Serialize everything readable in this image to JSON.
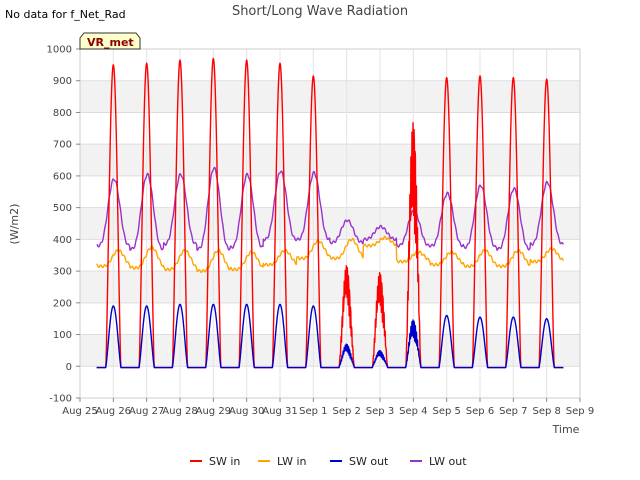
{
  "chart_data": {
    "type": "line",
    "title": "Short/Long Wave Radiation",
    "no_data_note": "No data for f_Net_Rad",
    "site_badge": "VR_met",
    "xlabel": "Time",
    "ylabel": "(W/m2)",
    "ylim": [
      -100,
      1000
    ],
    "yticks": [
      -100,
      0,
      100,
      200,
      300,
      400,
      500,
      600,
      700,
      800,
      900,
      1000
    ],
    "xlim": [
      0,
      15
    ],
    "xtick_labels": [
      "Aug 25",
      "Aug 26",
      "Aug 27",
      "Aug 28",
      "Aug 29",
      "Aug 30",
      "Aug 31",
      "Sep 1",
      "Sep 2",
      "Sep 3",
      "Sep 4",
      "Sep 5",
      "Sep 6",
      "Sep 7",
      "Sep 8",
      "Sep 9"
    ],
    "grid": true,
    "legend_position": "bottom",
    "series": [
      {
        "name": "SW in",
        "color": "#ff0000",
        "daily_peaks": [
          950,
          955,
          965,
          970,
          965,
          955,
          915,
          320,
          300,
          790,
          910,
          915,
          910,
          905
        ]
      },
      {
        "name": "LW in",
        "color": "#ffa500",
        "daily_max": [
          365,
          375,
          365,
          365,
          360,
          365,
          395,
          400,
          405,
          360,
          360,
          365,
          365,
          370
        ],
        "daily_min": [
          315,
          310,
          305,
          300,
          305,
          320,
          340,
          340,
          380,
          330,
          320,
          315,
          315,
          330
        ]
      },
      {
        "name": "SW out",
        "color": "#0000cc",
        "daily_peaks": [
          190,
          190,
          195,
          195,
          195,
          195,
          190,
          70,
          50,
          150,
          160,
          155,
          155,
          150
        ]
      },
      {
        "name": "LW out",
        "color": "#9932cc",
        "daily_max": [
          590,
          605,
          605,
          625,
          605,
          615,
          610,
          460,
          440,
          490,
          545,
          570,
          560,
          580
        ],
        "daily_min": [
          380,
          370,
          385,
          370,
          375,
          400,
          400,
          390,
          400,
          380,
          380,
          375,
          370,
          385
        ]
      }
    ]
  }
}
